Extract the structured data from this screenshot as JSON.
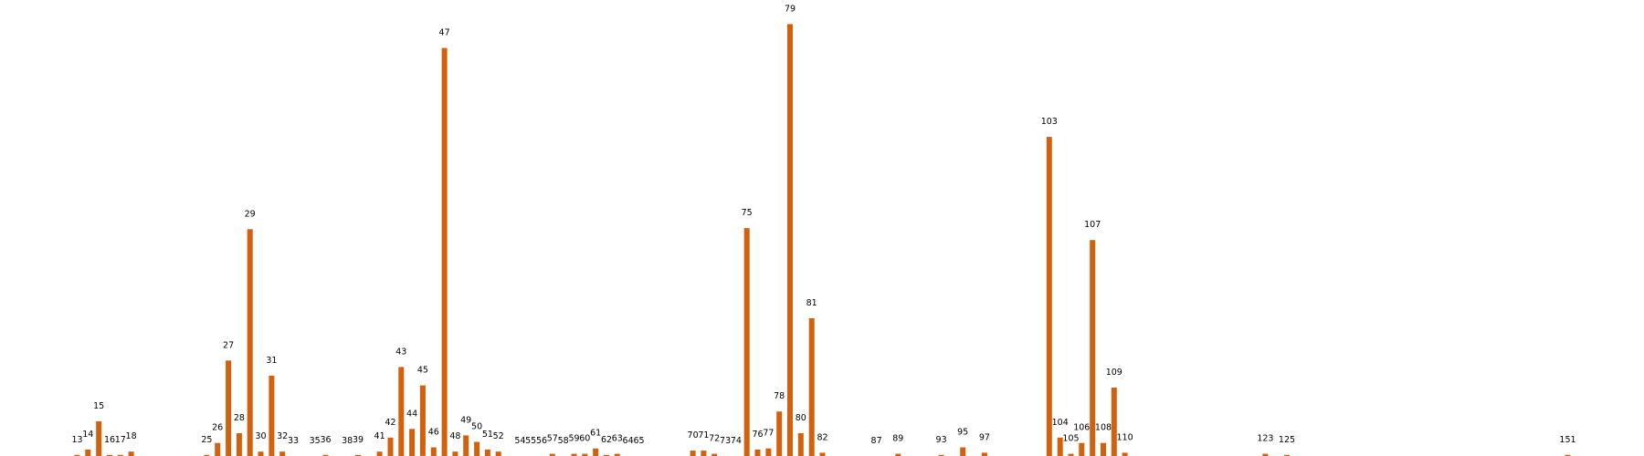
{
  "chart_data": {
    "type": "bar",
    "colors": {
      "bar": "#d2610e",
      "background": "#ffffff"
    },
    "axes_visible": false,
    "grid": false,
    "legend": "none",
    "x_label_position": "above-bar",
    "ylim": [
      0,
      400
    ],
    "x": [
      13,
      14,
      15,
      16,
      17,
      18,
      25,
      26,
      27,
      28,
      29,
      30,
      31,
      32,
      33,
      35,
      36,
      38,
      39,
      41,
      42,
      43,
      44,
      45,
      46,
      47,
      48,
      49,
      50,
      51,
      52,
      54,
      55,
      56,
      57,
      58,
      59,
      60,
      61,
      62,
      63,
      64,
      65,
      70,
      71,
      72,
      73,
      74,
      75,
      76,
      77,
      78,
      79,
      80,
      81,
      82,
      87,
      89,
      93,
      95,
      97,
      103,
      104,
      105,
      106,
      107,
      108,
      109,
      110,
      123,
      125,
      151
    ],
    "values": [
      1,
      6,
      32,
      1,
      1,
      4,
      1,
      12,
      88,
      21,
      209,
      4,
      74,
      4,
      0,
      0,
      1,
      0,
      1,
      4,
      17,
      82,
      25,
      65,
      8,
      376,
      4,
      19,
      13,
      6,
      4,
      0,
      0,
      0,
      2,
      0,
      2,
      2,
      7,
      1,
      2,
      0,
      0,
      5,
      5,
      2,
      0,
      0,
      210,
      6,
      7,
      41,
      398,
      21,
      127,
      3,
      0,
      2,
      1,
      8,
      3,
      294,
      17,
      2,
      12,
      199,
      12,
      63,
      3,
      2,
      1,
      1
    ]
  }
}
